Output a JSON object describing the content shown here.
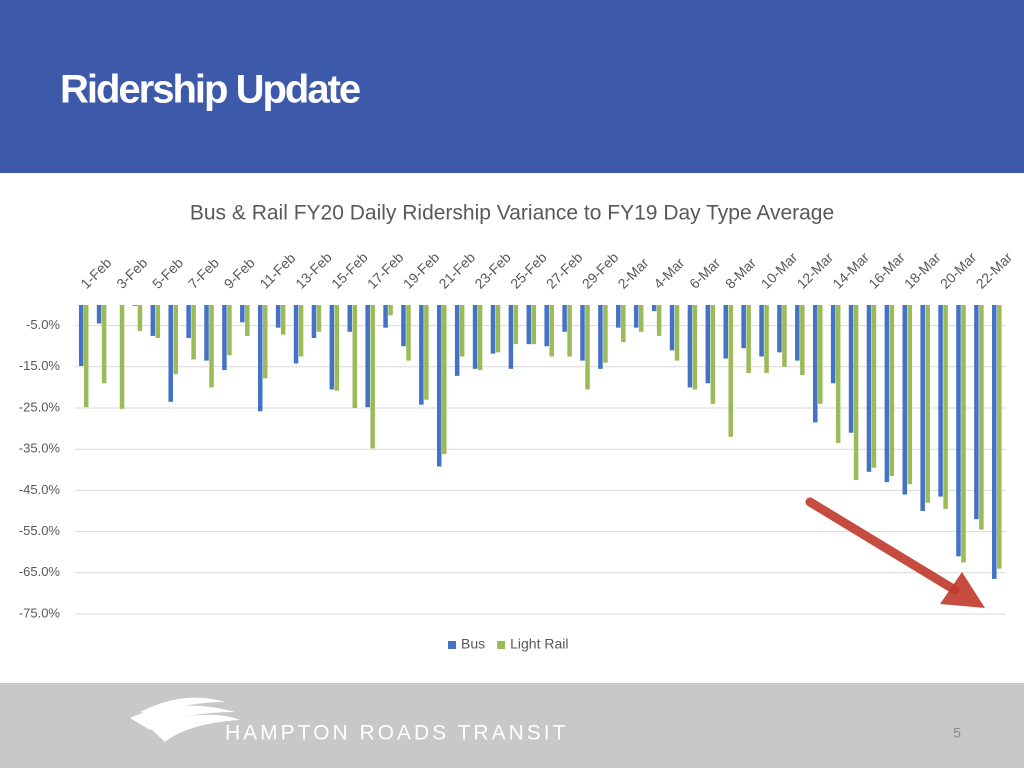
{
  "header": {
    "title": "Ridership Update"
  },
  "chart_data": {
    "type": "bar",
    "title": "Bus & Rail FY20 Daily Ridership Variance to FY19 Day Type Average",
    "categories": [
      "1-Feb",
      null,
      "3-Feb",
      null,
      "5-Feb",
      null,
      "7-Feb",
      null,
      "9-Feb",
      null,
      "11-Feb",
      null,
      "13-Feb",
      null,
      "15-Feb",
      null,
      "17-Feb",
      null,
      "19-Feb",
      null,
      "21-Feb",
      null,
      "23-Feb",
      null,
      "25-Feb",
      null,
      "27-Feb",
      null,
      "29-Feb",
      null,
      "2-Mar",
      null,
      "4-Mar",
      null,
      "6-Mar",
      null,
      "8-Mar",
      null,
      "10-Mar",
      null,
      "12-Mar",
      null,
      "14-Mar",
      null,
      "16-Mar",
      null,
      "18-Mar",
      null,
      "20-Mar",
      null,
      "22-Mar",
      null
    ],
    "series": [
      {
        "name": "Bus",
        "color": "#4472c4",
        "values": [
          -14.8,
          -4.5,
          0,
          -0.2,
          -7.5,
          -23.5,
          -8,
          -13.5,
          -15.8,
          -4.2,
          -25.8,
          -5.5,
          -14.2,
          -8,
          -20.5,
          -6.5,
          -24.8,
          -5.5,
          -10,
          -24.2,
          -39.2,
          -17.2,
          -15.5,
          -11.8,
          -15.5,
          -9.5,
          -10,
          -6.5,
          -13.5,
          -15.5,
          -5.5,
          -5.5,
          -1.5,
          -11,
          -20,
          -19,
          -13,
          -10.5,
          -12.5,
          -11.5,
          -13.5,
          -28.5,
          -19,
          -31,
          -40.5,
          -43,
          -46,
          -50,
          -46.5,
          -61,
          -52,
          -66.5
        ]
      },
      {
        "name": "Light Rail",
        "color": "#9bbb59",
        "values": [
          -24.8,
          -19,
          -25.2,
          -6.3,
          -8,
          -16.8,
          -13.2,
          -20,
          -12.2,
          -7.5,
          -17.8,
          -7.2,
          -12.5,
          -6.5,
          -20.8,
          -25,
          -34.8,
          -2.5,
          -13.5,
          -23,
          -36.2,
          -12.5,
          -15.8,
          -11.5,
          -9.5,
          -9.5,
          -12.5,
          -12.5,
          -20.5,
          -14,
          -9,
          -6.5,
          -7.5,
          -13.5,
          -20.5,
          -24,
          -32,
          -16.5,
          -16.5,
          -15,
          -17,
          -24,
          -33.5,
          -42.5,
          -39.5,
          -41.5,
          -43.5,
          -48,
          -49.5,
          -62.5,
          -54.5,
          -64
        ]
      }
    ],
    "ylim": [
      -75,
      0
    ],
    "yticks": [
      {
        "value": -5,
        "label": "-5.0%"
      },
      {
        "value": -15,
        "label": "-15.0%"
      },
      {
        "value": -25,
        "label": "-25.0%"
      },
      {
        "value": -35,
        "label": "-35.0%"
      },
      {
        "value": -45,
        "label": "-45.0%"
      },
      {
        "value": -55,
        "label": "-55.0%"
      },
      {
        "value": -65,
        "label": "-65.0%"
      },
      {
        "value": -75,
        "label": "-75.0%"
      }
    ],
    "grid": true,
    "legend": "bottom"
  },
  "footer": {
    "org": "HAMPTON ROADS TRANSIT",
    "page": "5"
  }
}
